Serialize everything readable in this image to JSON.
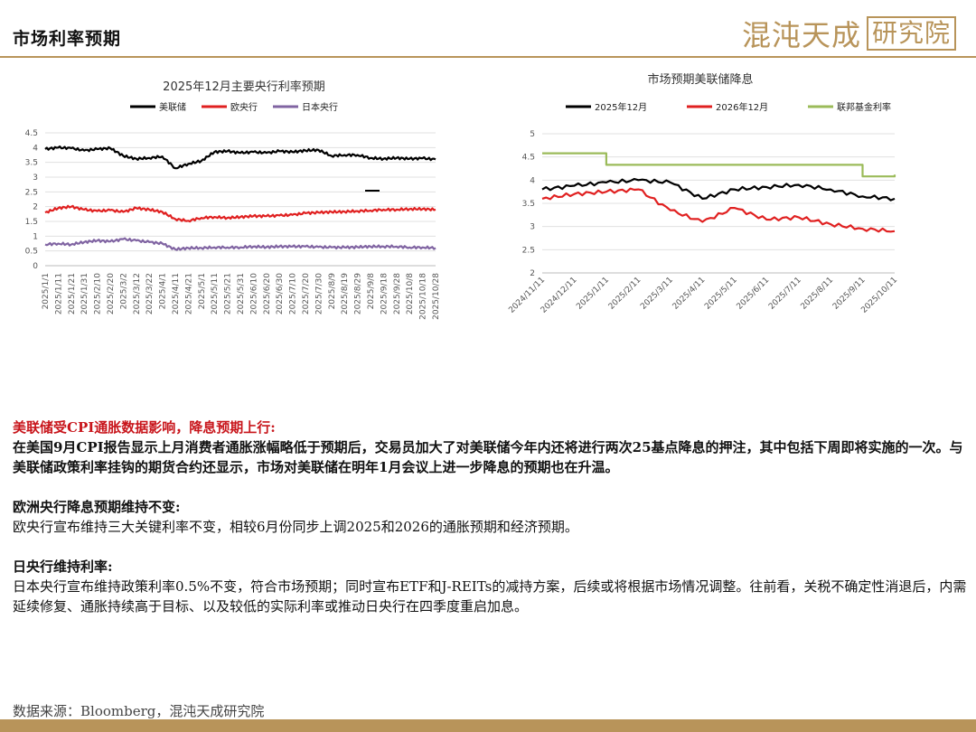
{
  "header": {
    "title": "市场利率预期",
    "brand_main": "混沌天成",
    "brand_box": "研究院"
  },
  "chart_data": [
    {
      "type": "line",
      "title": "2025年12月主要央行利率预期",
      "x": [
        "2025/1/1",
        "2025/1/11",
        "2025/1/21",
        "2025/1/31",
        "2025/2/10",
        "2025/2/20",
        "2025/3/2",
        "2025/3/12",
        "2025/3/22",
        "2025/4/1",
        "2025/4/11",
        "2025/4/21",
        "2025/5/1",
        "2025/5/11",
        "2025/5/21",
        "2025/5/31",
        "2025/6/10",
        "2025/6/20",
        "2025/6/30",
        "2025/7/10",
        "2025/7/20",
        "2025/7/30",
        "2025/8/9",
        "2025/8/19",
        "2025/8/29",
        "2025/9/8",
        "2025/9/18",
        "2025/9/28",
        "2025/10/8",
        "2025/10/18",
        "2025/10/28"
      ],
      "series": [
        {
          "name": "美联储",
          "color": "#000000",
          "values": [
            3.95,
            4.0,
            3.98,
            3.9,
            3.95,
            3.98,
            3.72,
            3.62,
            3.65,
            3.7,
            3.3,
            3.45,
            3.55,
            3.85,
            3.88,
            3.82,
            3.85,
            3.82,
            3.88,
            3.85,
            3.9,
            3.92,
            3.72,
            3.75,
            3.75,
            3.65,
            3.62,
            3.65,
            3.62,
            3.64,
            3.6
          ]
        },
        {
          "name": "欧央行",
          "color": "#e02020",
          "values": [
            1.8,
            1.95,
            2.0,
            1.9,
            1.85,
            1.88,
            1.82,
            1.95,
            1.9,
            1.82,
            1.58,
            1.52,
            1.62,
            1.65,
            1.62,
            1.65,
            1.68,
            1.68,
            1.7,
            1.72,
            1.78,
            1.8,
            1.82,
            1.83,
            1.85,
            1.87,
            1.9,
            1.9,
            1.92,
            1.92,
            1.9
          ]
        },
        {
          "name": "日本央行",
          "color": "#8064a2",
          "values": [
            0.72,
            0.75,
            0.72,
            0.8,
            0.85,
            0.82,
            0.9,
            0.85,
            0.8,
            0.75,
            0.55,
            0.6,
            0.6,
            0.62,
            0.62,
            0.62,
            0.65,
            0.63,
            0.65,
            0.65,
            0.65,
            0.63,
            0.62,
            0.62,
            0.63,
            0.65,
            0.65,
            0.65,
            0.62,
            0.62,
            0.6
          ]
        }
      ],
      "ylim": [
        0,
        4.5
      ],
      "yticks": [
        "0",
        "0.5",
        "1",
        "1.5",
        "2",
        "2.5",
        "3",
        "3.5",
        "4",
        "4.5"
      ]
    },
    {
      "type": "line",
      "title": "市场预期美联储降息",
      "x": [
        "2024/11/11",
        "2024/12/11",
        "2025/1/11",
        "2025/2/11",
        "2025/3/11",
        "2025/4/11",
        "2025/5/11",
        "2025/6/11",
        "2025/7/11",
        "2025/8/11",
        "2025/9/11",
        "2025/10/11"
      ],
      "series": [
        {
          "name": "2025年12月",
          "color": "#000000",
          "values": [
            3.8,
            3.88,
            3.95,
            4.0,
            3.95,
            3.6,
            3.8,
            3.85,
            3.9,
            3.8,
            3.65,
            3.6
          ]
        },
        {
          "name": "2026年12月",
          "color": "#e02020",
          "values": [
            3.6,
            3.7,
            3.75,
            3.8,
            3.35,
            3.1,
            3.4,
            3.15,
            3.2,
            3.05,
            2.95,
            2.9
          ]
        },
        {
          "name": "联邦基金利率",
          "color": "#9bbb59",
          "values": [
            4.58,
            4.58,
            4.33,
            4.33,
            4.33,
            4.33,
            4.33,
            4.33,
            4.33,
            4.33,
            4.08,
            4.12
          ]
        }
      ],
      "ylim": [
        2,
        5
      ],
      "yticks": [
        "2",
        "2.5",
        "3",
        "3.5",
        "4",
        "4.5",
        "5"
      ]
    }
  ],
  "body": {
    "s1_heading": "美联储受CPI通胀数据影响，降息预期上行:",
    "s1_text": "在美国9月CPI报告显示上月消费者通胀涨幅略低于预期后，交易员加大了对美联储今年内还将进行两次25基点降息的押注，其中包括下周即将实施的一次。与美联储政策利率挂钩的期货合约还显示，市场对美联储在明年1月会议上进一步降息的预期也在升温。",
    "s2_heading": "欧洲央行降息预期维持不变:",
    "s2_text": "欧央行宣布维持三大关键利率不变，相较6月份同步上调2025和2026的通胀预期和经济预期。",
    "s3_heading": "日央行维持利率:",
    "s3_text": "日本央行宣布维持政策利率0.5%不变，符合市场预期；同时宣布ETF和J-REITs的减持方案，后续或将根据市场情况调整。往前看，关税不确定性消退后，内需延续修复、通胀持续高于目标、以及较低的实际利率或推动日央行在四季度重启加息。"
  },
  "footer": {
    "source": "数据来源：Bloomberg，混沌天成研究院"
  }
}
